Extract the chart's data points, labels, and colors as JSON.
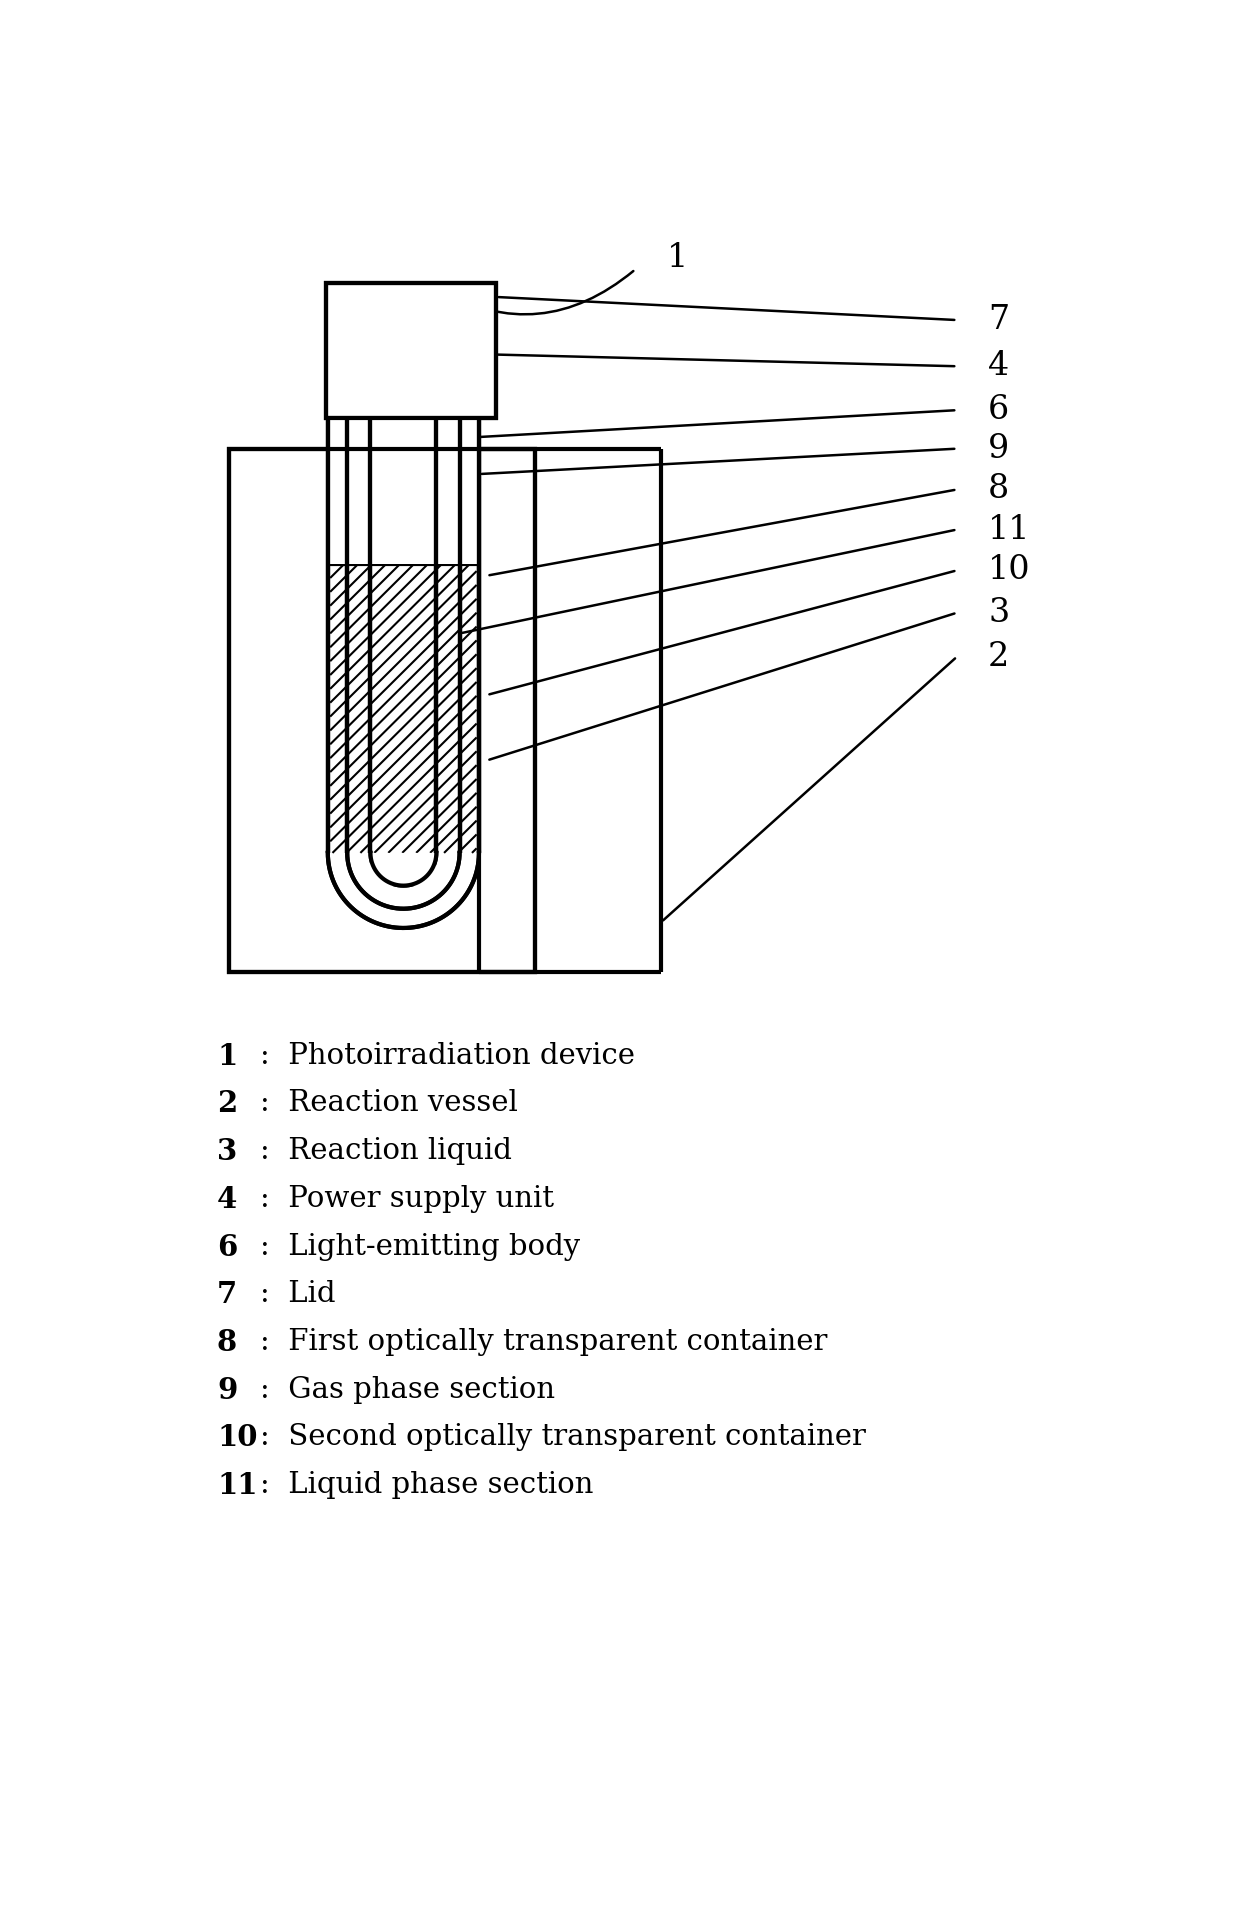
{
  "bg_color": "#ffffff",
  "line_color": "#000000",
  "legend_items": [
    {
      "num": "1",
      "text": "Photoirradiation device"
    },
    {
      "num": "2",
      "text": "Reaction vessel"
    },
    {
      "num": "3",
      "text": "Reaction liquid"
    },
    {
      "num": "4",
      "text": "Power supply unit"
    },
    {
      "num": "6",
      "text": "Light-emitting body"
    },
    {
      "num": "7",
      "text": "Lid"
    },
    {
      "num": "8",
      "text": "First optically transparent container"
    },
    {
      "num": "9",
      "text": "Gas phase section"
    },
    {
      "num": "10",
      "text": "Second optically transparent container"
    },
    {
      "num": "11",
      "text": "Liquid phase section"
    }
  ],
  "label_font_size": 21,
  "number_font_size": 24
}
